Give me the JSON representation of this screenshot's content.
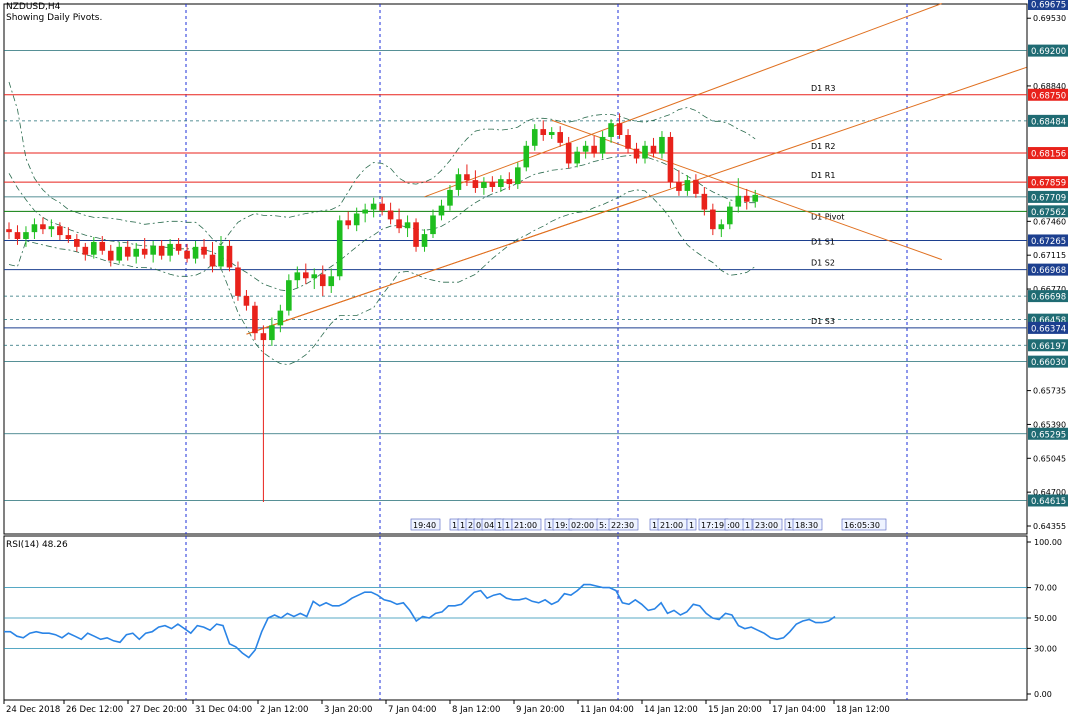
{
  "header": {
    "symbol": "NZDUSD,H4",
    "subtitle": "Showing Daily Pivots."
  },
  "rsi": {
    "label": "RSI(14) 48.26",
    "levels": [
      "100.00",
      "70.00",
      "50.00",
      "30.00",
      "0.00"
    ]
  },
  "time_labels": [
    "24 Dec 2018",
    "26 Dec 12:00",
    "27 Dec 20:00",
    "31 Dec 04:00",
    "2 Jan 12:00",
    "3 Jan 20:00",
    "7 Jan 04:00",
    "8 Jan 12:00",
    "9 Jan 20:00",
    "11 Jan 04:00",
    "14 Jan 12:00",
    "15 Jan 20:00",
    "17 Jan 04:00",
    "18 Jan 12:00"
  ],
  "session_labels": [
    "19:40",
    "1",
    "1",
    "2",
    "0",
    "04:",
    "1",
    "1",
    "21:00",
    "1",
    "19:",
    "02:00",
    "5:",
    "22:30",
    "1",
    "21:00",
    "1",
    "17:19",
    ":00",
    "1",
    "23:00",
    "1",
    "18:30",
    "16:05:30"
  ],
  "pivot_labels": [
    "D1 R3",
    "D1 R2",
    "D1 R1",
    "D1 Pivot",
    "D1 S1",
    "D1 S2",
    "D1 S3"
  ],
  "chart_data": [
    {
      "type": "candlestick",
      "title": "NZDUSD,H4",
      "subtitle": "Showing Daily Pivots.",
      "y_axis_ticks": [
        "0.69675",
        "0.69530",
        "0.69200",
        "0.68840",
        "0.68750",
        "0.68484",
        "0.68156",
        "0.67859",
        "0.67709",
        "0.67562",
        "0.67460",
        "0.67265",
        "0.67115",
        "0.66968",
        "0.66770",
        "0.66698",
        "0.66458",
        "0.66374",
        "0.66197",
        "0.66030",
        "0.65735",
        "0.65390",
        "0.65295",
        "0.65045",
        "0.64700",
        "0.64615",
        "0.64355"
      ],
      "highlighted_prices": [
        {
          "value": "0.69675",
          "color": "#1c3f8f"
        },
        {
          "value": "0.69200",
          "color": "#1f6b73"
        },
        {
          "value": "0.68750",
          "color": "#e8221b"
        },
        {
          "value": "0.68484",
          "color": "#1f6b73"
        },
        {
          "value": "0.68156",
          "color": "#e8221b"
        },
        {
          "value": "0.67859",
          "color": "#e8221b"
        },
        {
          "value": "0.67709",
          "color": "#1f6b73"
        },
        {
          "value": "0.67562",
          "color": "#1f6b73"
        },
        {
          "value": "0.67265",
          "color": "#1c3f8f"
        },
        {
          "value": "0.66968",
          "color": "#1c3f8f"
        },
        {
          "value": "0.66698",
          "color": "#1f6b73"
        },
        {
          "value": "0.66458",
          "color": "#1f6b73"
        },
        {
          "value": "0.66374",
          "color": "#1c3f8f"
        },
        {
          "value": "0.66197",
          "color": "#1f6b73"
        },
        {
          "value": "0.66030",
          "color": "#1f6b73"
        },
        {
          "value": "0.65295",
          "color": "#1f6b73"
        },
        {
          "value": "0.64615",
          "color": "#1f6b73"
        }
      ],
      "pivots": [
        {
          "name": "D1 R3",
          "value": 0.6875,
          "color": "#e8221b"
        },
        {
          "name": "D1 R2",
          "value": 0.68156,
          "color": "#e8221b"
        },
        {
          "name": "D1 R1",
          "value": 0.67859,
          "color": "#e8221b"
        },
        {
          "name": "D1 Pivot",
          "value": 0.67562,
          "color": "#0a7d0a"
        },
        {
          "name": "D1 S1",
          "value": 0.67265,
          "color": "#1c3f8f"
        },
        {
          "name": "D1 S2",
          "value": 0.66968,
          "color": "#1c3f8f"
        },
        {
          "name": "D1 S3",
          "value": 0.66374,
          "color": "#1c3f8f"
        }
      ],
      "other_levels": [
        0.692,
        0.68484,
        0.67709,
        0.66698,
        0.66458,
        0.66197,
        0.6603,
        0.65295,
        0.64615
      ],
      "candles_ohlc": [
        [
          0.6738,
          0.6745,
          0.6728,
          0.6735
        ],
        [
          0.6735,
          0.6742,
          0.6722,
          0.6728
        ],
        [
          0.6728,
          0.6741,
          0.672,
          0.6735
        ],
        [
          0.6735,
          0.6749,
          0.6728,
          0.6743
        ],
        [
          0.6743,
          0.675,
          0.6733,
          0.6738
        ],
        [
          0.6738,
          0.6748,
          0.673,
          0.6741
        ],
        [
          0.6741,
          0.6745,
          0.6727,
          0.6732
        ],
        [
          0.6732,
          0.674,
          0.6724,
          0.6728
        ],
        [
          0.6728,
          0.6733,
          0.6715,
          0.672
        ],
        [
          0.672,
          0.6724,
          0.6706,
          0.6712
        ],
        [
          0.6712,
          0.673,
          0.6708,
          0.6725
        ],
        [
          0.6725,
          0.6731,
          0.6712,
          0.6716
        ],
        [
          0.6716,
          0.6722,
          0.67,
          0.6706
        ],
        [
          0.6706,
          0.6725,
          0.6703,
          0.672
        ],
        [
          0.672,
          0.6726,
          0.6706,
          0.671
        ],
        [
          0.671,
          0.6724,
          0.6703,
          0.6718
        ],
        [
          0.6718,
          0.6729,
          0.6708,
          0.6712
        ],
        [
          0.6712,
          0.6726,
          0.6704,
          0.6721
        ],
        [
          0.6721,
          0.6727,
          0.6707,
          0.6711
        ],
        [
          0.6711,
          0.6728,
          0.6705,
          0.6723
        ],
        [
          0.6723,
          0.6729,
          0.6712,
          0.6716
        ],
        [
          0.6716,
          0.6723,
          0.6704,
          0.6708
        ],
        [
          0.6708,
          0.6726,
          0.6703,
          0.672
        ],
        [
          0.672,
          0.6728,
          0.6708,
          0.6712
        ],
        [
          0.6712,
          0.6725,
          0.6694,
          0.67
        ],
        [
          0.67,
          0.6731,
          0.6697,
          0.6721
        ],
        [
          0.6721,
          0.6727,
          0.6695,
          0.6699
        ],
        [
          0.6699,
          0.6705,
          0.6665,
          0.667
        ],
        [
          0.667,
          0.6676,
          0.6655,
          0.666
        ],
        [
          0.666,
          0.6664,
          0.6625,
          0.6632
        ],
        [
          0.6632,
          0.664,
          0.646,
          0.6625
        ],
        [
          0.6625,
          0.6648,
          0.6619,
          0.664
        ],
        [
          0.664,
          0.6661,
          0.6633,
          0.6655
        ],
        [
          0.6655,
          0.6692,
          0.665,
          0.6686
        ],
        [
          0.6686,
          0.67,
          0.6678,
          0.6694
        ],
        [
          0.6694,
          0.6703,
          0.6682,
          0.6688
        ],
        [
          0.6688,
          0.6698,
          0.6677,
          0.6692
        ],
        [
          0.6692,
          0.6701,
          0.667,
          0.668
        ],
        [
          0.668,
          0.6698,
          0.6673,
          0.669
        ],
        [
          0.669,
          0.6752,
          0.6686,
          0.6747
        ],
        [
          0.6747,
          0.6756,
          0.6738,
          0.6742
        ],
        [
          0.6742,
          0.676,
          0.6736,
          0.6754
        ],
        [
          0.6754,
          0.6764,
          0.6745,
          0.6758
        ],
        [
          0.6758,
          0.677,
          0.675,
          0.6764
        ],
        [
          0.6764,
          0.6771,
          0.6752,
          0.6757
        ],
        [
          0.6757,
          0.6765,
          0.6743,
          0.6748
        ],
        [
          0.6748,
          0.6759,
          0.6734,
          0.6739
        ],
        [
          0.6739,
          0.6752,
          0.673,
          0.6745
        ],
        [
          0.6745,
          0.6749,
          0.6715,
          0.672
        ],
        [
          0.672,
          0.6738,
          0.6715,
          0.6733
        ],
        [
          0.6733,
          0.6758,
          0.6729,
          0.6752
        ],
        [
          0.6752,
          0.6768,
          0.6747,
          0.6762
        ],
        [
          0.6762,
          0.6783,
          0.6757,
          0.6778
        ],
        [
          0.6778,
          0.68,
          0.6772,
          0.6794
        ],
        [
          0.6794,
          0.6804,
          0.6782,
          0.6788
        ],
        [
          0.6788,
          0.6798,
          0.6775,
          0.678
        ],
        [
          0.678,
          0.6791,
          0.6773,
          0.6786
        ],
        [
          0.6786,
          0.6792,
          0.6776,
          0.6781
        ],
        [
          0.6781,
          0.6793,
          0.6776,
          0.6789
        ],
        [
          0.6789,
          0.6796,
          0.6778,
          0.6784
        ],
        [
          0.6784,
          0.6806,
          0.6779,
          0.6801
        ],
        [
          0.6801,
          0.6828,
          0.6797,
          0.6823
        ],
        [
          0.6823,
          0.6845,
          0.6818,
          0.684
        ],
        [
          0.684,
          0.6849,
          0.6828,
          0.6834
        ],
        [
          0.6834,
          0.6842,
          0.683,
          0.6837
        ],
        [
          0.6837,
          0.6843,
          0.6822,
          0.6826
        ],
        [
          0.6826,
          0.6832,
          0.68,
          0.6805
        ],
        [
          0.6805,
          0.6822,
          0.6801,
          0.6817
        ],
        [
          0.6817,
          0.6828,
          0.681,
          0.6823
        ],
        [
          0.6823,
          0.6833,
          0.6811,
          0.6815
        ],
        [
          0.6815,
          0.6838,
          0.681,
          0.6832
        ],
        [
          0.6832,
          0.685,
          0.6826,
          0.6846
        ],
        [
          0.6846,
          0.6856,
          0.683,
          0.6834
        ],
        [
          0.6834,
          0.684,
          0.6815,
          0.682
        ],
        [
          0.682,
          0.6826,
          0.6805,
          0.681
        ],
        [
          0.681,
          0.6828,
          0.6805,
          0.6823
        ],
        [
          0.6823,
          0.6831,
          0.6811,
          0.6815
        ],
        [
          0.6815,
          0.6838,
          0.681,
          0.6832
        ],
        [
          0.6832,
          0.6837,
          0.678,
          0.6786
        ],
        [
          0.6786,
          0.6798,
          0.6772,
          0.6777
        ],
        [
          0.6777,
          0.6793,
          0.6772,
          0.6788
        ],
        [
          0.6788,
          0.6794,
          0.677,
          0.6774
        ],
        [
          0.6774,
          0.6781,
          0.6752,
          0.6758
        ],
        [
          0.6758,
          0.6764,
          0.6732,
          0.6738
        ],
        [
          0.6738,
          0.6748,
          0.673,
          0.6743
        ],
        [
          0.6743,
          0.6766,
          0.6738,
          0.6761
        ],
        [
          0.6761,
          0.679,
          0.6755,
          0.6772
        ],
        [
          0.6772,
          0.6779,
          0.6758,
          0.6766
        ],
        [
          0.6766,
          0.6778,
          0.676,
          0.6773
        ]
      ],
      "resistance_channel": {
        "x0": 28,
        "y0": 0.6631,
        "x1": 74,
        "y1": 0.6767
      },
      "upper_channel": {
        "x0": 49,
        "y0": 0.6771,
        "x1": 110,
        "y1": 0.6968
      },
      "descending_line": {
        "x0": 64,
        "y0": 0.6849,
        "x1": 110,
        "y1": 0.6707
      },
      "bollinger": {
        "upper": [
          0.6888,
          0.686,
          0.681,
          0.679,
          0.6778,
          0.677,
          0.6765,
          0.6758,
          0.6755,
          0.6752,
          0.675,
          0.675,
          0.6749,
          0.6748,
          0.6746,
          0.6745,
          0.6743,
          0.6744,
          0.6745,
          0.6746,
          0.6746,
          0.6745,
          0.6745,
          0.6738,
          0.6728,
          0.6722,
          0.6734,
          0.6745,
          0.675,
          0.6754,
          0.6752,
          0.6752,
          0.6751,
          0.675,
          0.6752,
          0.6754,
          0.6755,
          0.6757,
          0.6758,
          0.6762,
          0.6776,
          0.679,
          0.68,
          0.6806,
          0.6805,
          0.68,
          0.679,
          0.6785,
          0.6784,
          0.6786,
          0.679,
          0.6798,
          0.6808,
          0.682,
          0.683,
          0.6838,
          0.684,
          0.684,
          0.6839,
          0.684,
          0.6842,
          0.6848,
          0.6851,
          0.6851,
          0.685,
          0.6848,
          0.6847,
          0.6849,
          0.6852,
          0.6854,
          0.6855,
          0.6855,
          0.6853,
          0.685,
          0.6848,
          0.6847,
          0.6849,
          0.6852,
          0.6855,
          0.686,
          0.6862,
          0.6859,
          0.6853,
          0.6848,
          0.6848,
          0.6845,
          0.684,
          0.6836,
          0.683
        ],
        "middle": [
          0.6795,
          0.678,
          0.6768,
          0.6757,
          0.675,
          0.6745,
          0.6742,
          0.6738,
          0.6735,
          0.6732,
          0.673,
          0.6728,
          0.6726,
          0.6725,
          0.6724,
          0.6722,
          0.6721,
          0.6721,
          0.672,
          0.6719,
          0.6718,
          0.6718,
          0.6718,
          0.6717,
          0.6715,
          0.671,
          0.6705,
          0.6699,
          0.6694,
          0.6688,
          0.6682,
          0.6679,
          0.6676,
          0.6675,
          0.6678,
          0.6682,
          0.6687,
          0.6694,
          0.67,
          0.6706,
          0.6713,
          0.672,
          0.6727,
          0.6732,
          0.6738,
          0.6741,
          0.6742,
          0.674,
          0.6738,
          0.6737,
          0.6738,
          0.6741,
          0.6746,
          0.6752,
          0.6759,
          0.6765,
          0.677,
          0.6774,
          0.6777,
          0.6781,
          0.6785,
          0.679,
          0.6794,
          0.6796,
          0.6798,
          0.6799,
          0.68,
          0.6802,
          0.6804,
          0.6807,
          0.6809,
          0.6811,
          0.6812,
          0.6813,
          0.6813,
          0.6812,
          0.6809,
          0.6806,
          0.6802,
          0.6797,
          0.6792,
          0.6787,
          0.6781,
          0.6776,
          0.6772,
          0.6768,
          0.6766,
          0.6765,
          0.6765
        ],
        "lower": [
          0.6702,
          0.67,
          0.6726,
          0.6724,
          0.6722,
          0.672,
          0.6718,
          0.6717,
          0.6715,
          0.6712,
          0.671,
          0.6707,
          0.6704,
          0.6702,
          0.6701,
          0.6699,
          0.6699,
          0.6698,
          0.6695,
          0.6692,
          0.669,
          0.669,
          0.6691,
          0.6695,
          0.6702,
          0.6698,
          0.6676,
          0.6653,
          0.6638,
          0.6622,
          0.6612,
          0.6606,
          0.6601,
          0.66,
          0.6604,
          0.661,
          0.6619,
          0.6631,
          0.6642,
          0.665,
          0.665,
          0.665,
          0.6654,
          0.6658,
          0.6671,
          0.6682,
          0.6694,
          0.6695,
          0.6692,
          0.6688,
          0.6686,
          0.6684,
          0.6684,
          0.6684,
          0.6688,
          0.6692,
          0.67,
          0.6708,
          0.6715,
          0.6722,
          0.6728,
          0.6732,
          0.6737,
          0.6741,
          0.6746,
          0.675,
          0.6753,
          0.6755,
          0.6756,
          0.676,
          0.6763,
          0.6767,
          0.6771,
          0.6776,
          0.6778,
          0.6777,
          0.6769,
          0.676,
          0.6749,
          0.6734,
          0.6722,
          0.6715,
          0.6709,
          0.6704,
          0.6696,
          0.6691,
          0.6692,
          0.6694,
          0.67
        ]
      }
    },
    {
      "type": "line",
      "title": "RSI(14) 48.26",
      "y_ticks": [
        "100.00",
        "70.00",
        "50.00",
        "30.00",
        "0.00"
      ],
      "levels": [
        70,
        50,
        30
      ],
      "ylim": [
        0,
        100
      ],
      "series": [
        {
          "name": "RSI(14)",
          "values": [
            41,
            41,
            38,
            37,
            40,
            41,
            40,
            40,
            39,
            37,
            40,
            38,
            36,
            40,
            38,
            36,
            37,
            35,
            34,
            39,
            40,
            36,
            40,
            41,
            44,
            45,
            43,
            46,
            43,
            40,
            45,
            44,
            42,
            46,
            45,
            33,
            31,
            27,
            24,
            29,
            41,
            50,
            52,
            50,
            53,
            51,
            53,
            51,
            61,
            58,
            60,
            58,
            58,
            60,
            63,
            65,
            67,
            67,
            65,
            62,
            61,
            59,
            60,
            55,
            48,
            51,
            50,
            53,
            54,
            58,
            58,
            59,
            63,
            67,
            68,
            63,
            65,
            66,
            63,
            62,
            62,
            63,
            61,
            60,
            62,
            59,
            61,
            66,
            65,
            68,
            72,
            72,
            71,
            70,
            70,
            68,
            60,
            59,
            62,
            59,
            55,
            56,
            60,
            53,
            55,
            52,
            54,
            59,
            58,
            53,
            50,
            49,
            53,
            52,
            45,
            43,
            44,
            42,
            40,
            37,
            36,
            37,
            41,
            46,
            48,
            49,
            47,
            47,
            48,
            51
          ]
        }
      ]
    }
  ]
}
